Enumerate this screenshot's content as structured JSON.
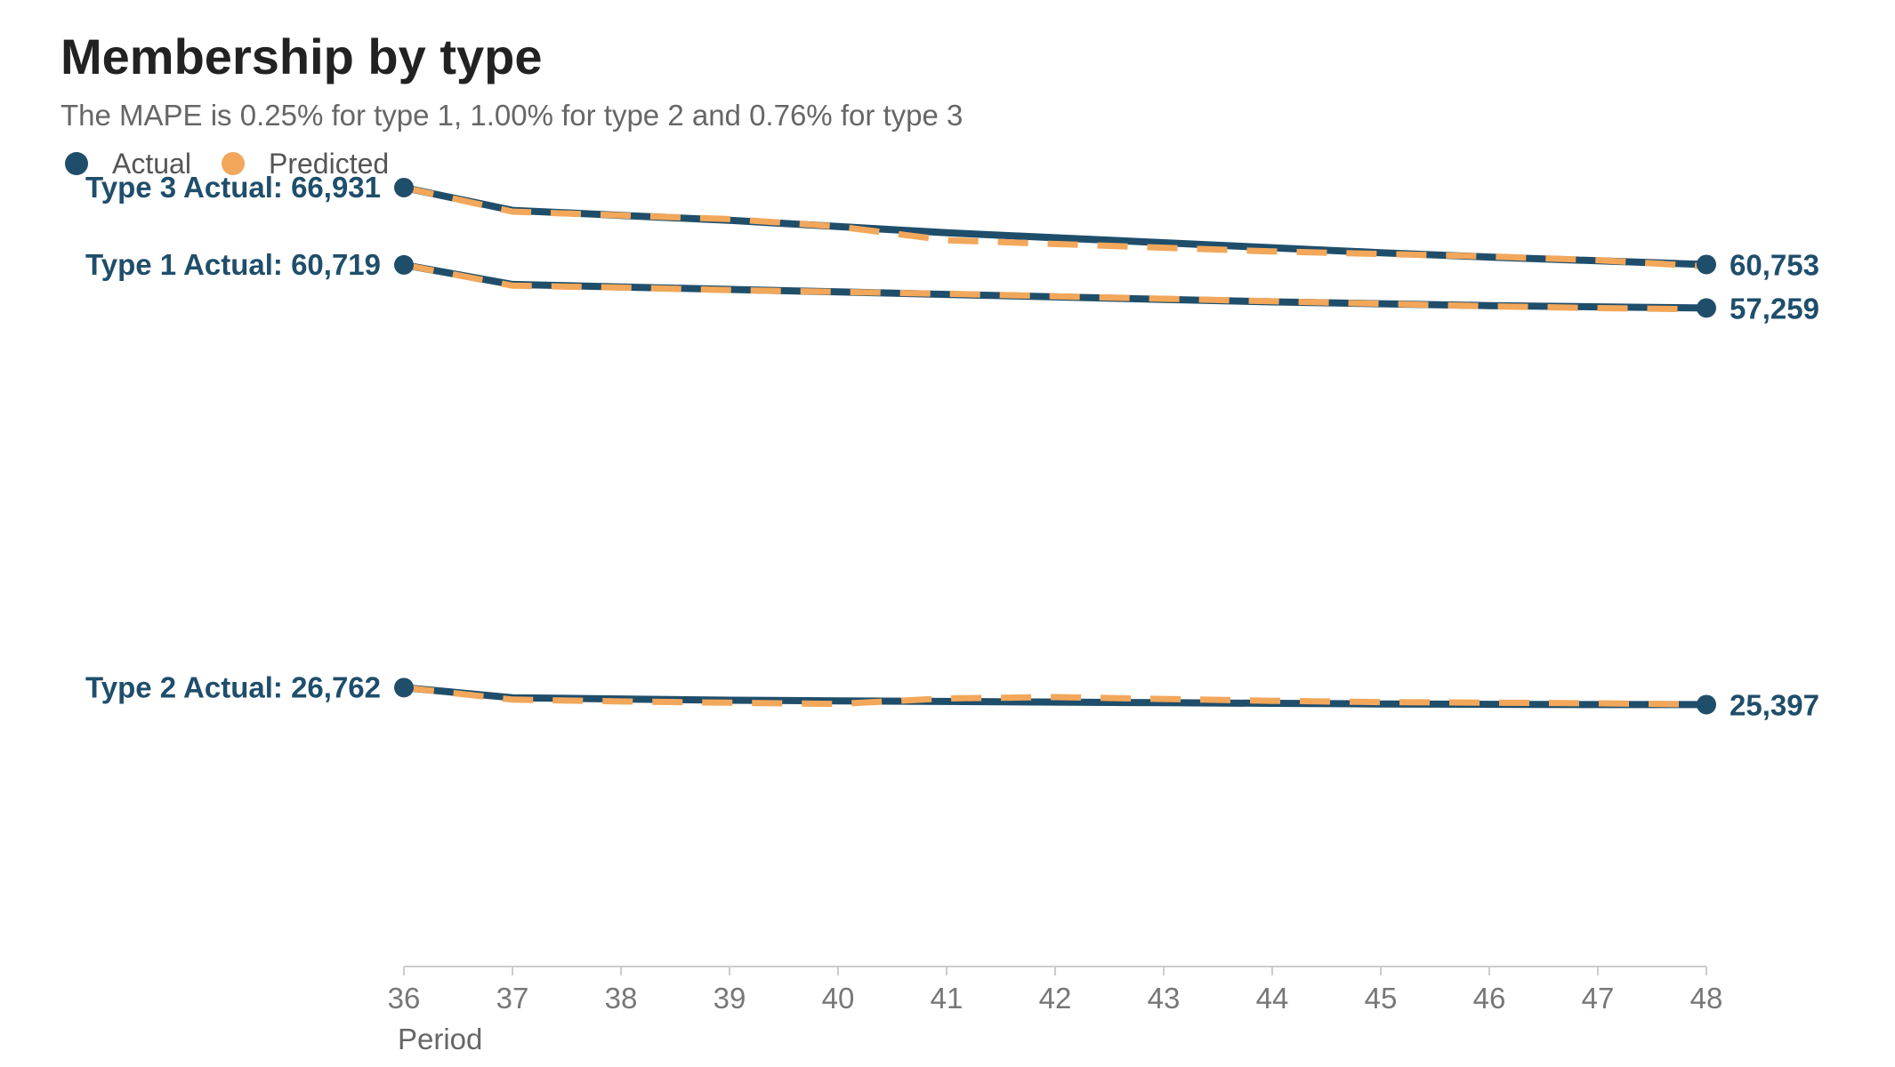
{
  "colors": {
    "actual": "#1f4e6b",
    "predicted": "#f2a75a",
    "axis": "#cccccc"
  },
  "chart_data": {
    "type": "line",
    "title": "Membership by type",
    "subtitle": "The MAPE is 0.25% for type 1, 1.00% for type 2 and 0.76% for type 3",
    "xlabel": "Period",
    "ylabel": "",
    "x": [
      36,
      37,
      38,
      39,
      40,
      41,
      42,
      43,
      44,
      45,
      46,
      47,
      48
    ],
    "xlim": [
      36,
      48
    ],
    "ylim": [
      10000,
      70000
    ],
    "grid": false,
    "legend": {
      "position": "top-left",
      "items": [
        {
          "label": "Actual",
          "color": "#1f4e6b"
        },
        {
          "label": "Predicted",
          "color": "#f2a75a"
        }
      ]
    },
    "series": [
      {
        "group": "Type 3",
        "kind": "Actual",
        "values": [
          66931,
          65100,
          64700,
          64300,
          63800,
          63300,
          62900,
          62500,
          62100,
          61700,
          61350,
          61050,
          60753
        ],
        "start_label": "Type 3 Actual: 66,931",
        "end_label": "60,753"
      },
      {
        "group": "Type 3",
        "kind": "Predicted",
        "values": [
          66931,
          65000,
          64700,
          64400,
          63800,
          62700,
          62400,
          62100,
          61800,
          61600,
          61400,
          61100,
          60600
        ]
      },
      {
        "group": "Type 1",
        "kind": "Actual",
        "values": [
          60719,
          59150,
          58950,
          58750,
          58550,
          58350,
          58150,
          57950,
          57750,
          57600,
          57450,
          57350,
          57259
        ]
      },
      {
        "group": "Type 1",
        "kind": "Predicted",
        "values": [
          60719,
          59050,
          58900,
          58700,
          58550,
          58400,
          58200,
          58000,
          57800,
          57600,
          57400,
          57250,
          57150
        ],
        "start_label": "Type 1 Actual: 60,719",
        "end_label": "57,259"
      },
      {
        "group": "Type 2",
        "kind": "Actual",
        "values": [
          26762,
          25950,
          25850,
          25750,
          25700,
          25650,
          25600,
          25550,
          25500,
          25450,
          25420,
          25400,
          25397
        ],
        "start_label": "Type 2 Actual: 26,762",
        "end_label": "25,397"
      },
      {
        "group": "Type 2",
        "kind": "Predicted",
        "values": [
          26762,
          25800,
          25650,
          25550,
          25450,
          25900,
          26000,
          25850,
          25700,
          25600,
          25550,
          25500,
          25400
        ]
      }
    ]
  }
}
